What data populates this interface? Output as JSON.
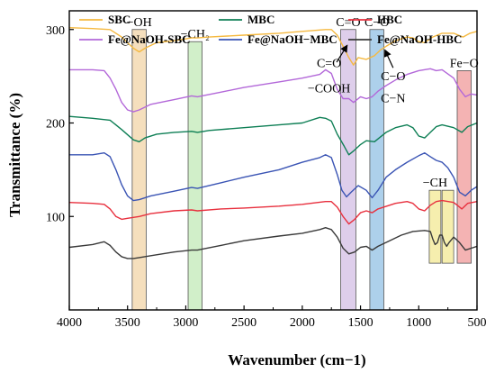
{
  "chart_data": {
    "type": "line",
    "title": "",
    "xlabel": "Wavenumber (cm−1)",
    "ylabel": "Transmittance (%)",
    "xlim": [
      4000,
      500
    ],
    "ylim": [
      0,
      320
    ],
    "x_ticks": [
      4000,
      3500,
      3000,
      2500,
      2000,
      1500,
      1000,
      500
    ],
    "y_ticks": [
      100,
      200,
      300
    ],
    "legend_position": "top",
    "series": [
      {
        "name": "SBC",
        "color": "#f5b940",
        "points": [
          [
            4000,
            302
          ],
          [
            3800,
            301
          ],
          [
            3650,
            300
          ],
          [
            3550,
            292
          ],
          [
            3450,
            280
          ],
          [
            3400,
            276
          ],
          [
            3350,
            280
          ],
          [
            3250,
            286
          ],
          [
            3100,
            288
          ],
          [
            2950,
            291
          ],
          [
            2900,
            291
          ],
          [
            2800,
            292
          ],
          [
            2500,
            294
          ],
          [
            2200,
            296
          ],
          [
            2000,
            298
          ],
          [
            1800,
            300
          ],
          [
            1750,
            300
          ],
          [
            1700,
            294
          ],
          [
            1650,
            282
          ],
          [
            1600,
            270
          ],
          [
            1560,
            262
          ],
          [
            1520,
            270
          ],
          [
            1450,
            268
          ],
          [
            1380,
            272
          ],
          [
            1330,
            278
          ],
          [
            1280,
            282
          ],
          [
            1200,
            288
          ],
          [
            1100,
            292
          ],
          [
            1050,
            291
          ],
          [
            1000,
            287
          ],
          [
            950,
            286
          ],
          [
            880,
            292
          ],
          [
            800,
            296
          ],
          [
            700,
            296
          ],
          [
            620,
            292
          ],
          [
            560,
            296
          ],
          [
            500,
            298
          ]
        ]
      },
      {
        "name": "MBC",
        "color": "#0e7f55",
        "points": [
          [
            4000,
            207
          ],
          [
            3800,
            205
          ],
          [
            3650,
            203
          ],
          [
            3550,
            193
          ],
          [
            3450,
            182
          ],
          [
            3400,
            180
          ],
          [
            3350,
            184
          ],
          [
            3250,
            188
          ],
          [
            3100,
            190
          ],
          [
            2950,
            191
          ],
          [
            2900,
            190
          ],
          [
            2800,
            192
          ],
          [
            2500,
            195
          ],
          [
            2200,
            198
          ],
          [
            2000,
            200
          ],
          [
            1850,
            206
          ],
          [
            1800,
            205
          ],
          [
            1750,
            202
          ],
          [
            1700,
            188
          ],
          [
            1640,
            175
          ],
          [
            1600,
            166
          ],
          [
            1560,
            170
          ],
          [
            1500,
            177
          ],
          [
            1450,
            181
          ],
          [
            1380,
            180
          ],
          [
            1330,
            185
          ],
          [
            1280,
            190
          ],
          [
            1200,
            195
          ],
          [
            1100,
            198
          ],
          [
            1050,
            195
          ],
          [
            1000,
            186
          ],
          [
            950,
            184
          ],
          [
            900,
            190
          ],
          [
            850,
            196
          ],
          [
            800,
            198
          ],
          [
            700,
            195
          ],
          [
            630,
            190
          ],
          [
            580,
            196
          ],
          [
            500,
            200
          ]
        ]
      },
      {
        "name": "HBC",
        "color": "#e8303e",
        "points": [
          [
            4000,
            115
          ],
          [
            3800,
            114
          ],
          [
            3700,
            113
          ],
          [
            3650,
            108
          ],
          [
            3600,
            100
          ],
          [
            3550,
            97
          ],
          [
            3500,
            98
          ],
          [
            3450,
            99
          ],
          [
            3400,
            100
          ],
          [
            3300,
            103
          ],
          [
            3100,
            106
          ],
          [
            2950,
            107
          ],
          [
            2900,
            106
          ],
          [
            2700,
            108
          ],
          [
            2500,
            109
          ],
          [
            2200,
            111
          ],
          [
            2000,
            113
          ],
          [
            1800,
            116
          ],
          [
            1750,
            116
          ],
          [
            1700,
            110
          ],
          [
            1650,
            100
          ],
          [
            1600,
            92
          ],
          [
            1550,
            97
          ],
          [
            1500,
            104
          ],
          [
            1450,
            106
          ],
          [
            1400,
            104
          ],
          [
            1350,
            108
          ],
          [
            1200,
            114
          ],
          [
            1100,
            116
          ],
          [
            1050,
            114
          ],
          [
            1000,
            108
          ],
          [
            950,
            106
          ],
          [
            900,
            112
          ],
          [
            850,
            116
          ],
          [
            800,
            117
          ],
          [
            700,
            115
          ],
          [
            630,
            108
          ],
          [
            580,
            114
          ],
          [
            500,
            116
          ]
        ]
      },
      {
        "name": "Fe@NaOH-SBC",
        "color": "#b368d9",
        "points": [
          [
            4000,
            257
          ],
          [
            3800,
            257
          ],
          [
            3700,
            256
          ],
          [
            3650,
            248
          ],
          [
            3600,
            236
          ],
          [
            3550,
            222
          ],
          [
            3500,
            214
          ],
          [
            3450,
            212
          ],
          [
            3400,
            214
          ],
          [
            3300,
            220
          ],
          [
            3100,
            225
          ],
          [
            2950,
            229
          ],
          [
            2900,
            228
          ],
          [
            2700,
            233
          ],
          [
            2500,
            238
          ],
          [
            2200,
            244
          ],
          [
            2000,
            248
          ],
          [
            1850,
            252
          ],
          [
            1800,
            257
          ],
          [
            1750,
            253
          ],
          [
            1700,
            236
          ],
          [
            1650,
            226
          ],
          [
            1600,
            226
          ],
          [
            1560,
            222
          ],
          [
            1500,
            228
          ],
          [
            1450,
            226
          ],
          [
            1400,
            228
          ],
          [
            1350,
            234
          ],
          [
            1280,
            240
          ],
          [
            1200,
            246
          ],
          [
            1100,
            252
          ],
          [
            1000,
            256
          ],
          [
            900,
            258
          ],
          [
            850,
            256
          ],
          [
            800,
            257
          ],
          [
            700,
            248
          ],
          [
            650,
            236
          ],
          [
            600,
            228
          ],
          [
            550,
            231
          ],
          [
            500,
            230
          ]
        ]
      },
      {
        "name": "Fe@NaOH−MBC",
        "color": "#3a54b4",
        "points": [
          [
            4000,
            166
          ],
          [
            3800,
            166
          ],
          [
            3700,
            168
          ],
          [
            3650,
            164
          ],
          [
            3600,
            150
          ],
          [
            3550,
            134
          ],
          [
            3500,
            122
          ],
          [
            3450,
            117
          ],
          [
            3400,
            118
          ],
          [
            3300,
            122
          ],
          [
            3100,
            127
          ],
          [
            2950,
            131
          ],
          [
            2900,
            130
          ],
          [
            2700,
            136
          ],
          [
            2500,
            142
          ],
          [
            2200,
            150
          ],
          [
            2000,
            158
          ],
          [
            1850,
            163
          ],
          [
            1800,
            166
          ],
          [
            1750,
            163
          ],
          [
            1700,
            145
          ],
          [
            1660,
            128
          ],
          [
            1620,
            121
          ],
          [
            1580,
            126
          ],
          [
            1520,
            133
          ],
          [
            1450,
            128
          ],
          [
            1400,
            120
          ],
          [
            1350,
            128
          ],
          [
            1280,
            142
          ],
          [
            1200,
            150
          ],
          [
            1100,
            158
          ],
          [
            1000,
            165
          ],
          [
            950,
            168
          ],
          [
            900,
            164
          ],
          [
            850,
            160
          ],
          [
            800,
            158
          ],
          [
            750,
            152
          ],
          [
            700,
            142
          ],
          [
            650,
            126
          ],
          [
            600,
            122
          ],
          [
            550,
            128
          ],
          [
            500,
            132
          ]
        ]
      },
      {
        "name": "Fe@NaOH-HBC",
        "color": "#3a3a3a",
        "points": [
          [
            4000,
            67
          ],
          [
            3800,
            70
          ],
          [
            3700,
            73
          ],
          [
            3650,
            69
          ],
          [
            3600,
            62
          ],
          [
            3550,
            57
          ],
          [
            3500,
            55
          ],
          [
            3450,
            55
          ],
          [
            3400,
            56
          ],
          [
            3300,
            58
          ],
          [
            3100,
            62
          ],
          [
            2950,
            64
          ],
          [
            2900,
            64
          ],
          [
            2700,
            69
          ],
          [
            2500,
            74
          ],
          [
            2200,
            79
          ],
          [
            2000,
            82
          ],
          [
            1850,
            86
          ],
          [
            1800,
            88
          ],
          [
            1750,
            86
          ],
          [
            1700,
            78
          ],
          [
            1650,
            66
          ],
          [
            1600,
            60
          ],
          [
            1550,
            62
          ],
          [
            1500,
            67
          ],
          [
            1450,
            68
          ],
          [
            1400,
            64
          ],
          [
            1350,
            68
          ],
          [
            1250,
            74
          ],
          [
            1150,
            80
          ],
          [
            1050,
            84
          ],
          [
            950,
            85
          ],
          [
            900,
            84
          ],
          [
            880,
            76
          ],
          [
            860,
            70
          ],
          [
            840,
            72
          ],
          [
            820,
            80
          ],
          [
            800,
            80
          ],
          [
            780,
            72
          ],
          [
            760,
            68
          ],
          [
            740,
            72
          ],
          [
            700,
            78
          ],
          [
            650,
            72
          ],
          [
            600,
            64
          ],
          [
            550,
            66
          ],
          [
            500,
            68
          ]
        ]
      }
    ],
    "bands": [
      {
        "label": "−OH",
        "x_range": [
          3460,
          3340
        ],
        "y_range": [
          0,
          300
        ],
        "color": "#f3d9b1"
      },
      {
        "label": "−CH₂",
        "x_range": [
          2980,
          2860
        ],
        "y_range": [
          0,
          287
        ],
        "color": "#c9ecc0"
      },
      {
        "label": "C=O",
        "x_range": [
          1670,
          1540
        ],
        "y_range": [
          0,
          300
        ],
        "color": "#d8c6e8"
      },
      {
        "label": "C−O",
        "x_range": [
          1420,
          1300
        ],
        "y_range": [
          0,
          300
        ],
        "color": "#9fc8e8"
      },
      {
        "label": "−CH",
        "x_range": [
          910,
          810
        ],
        "y_range": [
          50,
          128
        ],
        "color": "#f5eba0"
      },
      {
        "label": "",
        "x_range": [
          800,
          700
        ],
        "y_range": [
          50,
          128
        ],
        "color": "#f5eba0"
      },
      {
        "label": "Fe−O",
        "x_range": [
          670,
          550
        ],
        "y_range": [
          50,
          256
        ],
        "color": "#f2a6a6"
      }
    ],
    "annotations": [
      {
        "text": "−COOH",
        "x": 1770,
        "y": 233
      },
      {
        "text": "C−N",
        "x": 1220,
        "y": 222
      },
      {
        "text": "C=O",
        "x": 1770,
        "y": 260
      },
      {
        "text": "C−O",
        "x": 1220,
        "y": 246
      }
    ],
    "arrows": [
      {
        "from": [
          1705,
          265
        ],
        "to": [
          1615,
          283
        ]
      },
      {
        "from": [
          1220,
          259
        ],
        "to": [
          1290,
          278
        ]
      }
    ]
  }
}
